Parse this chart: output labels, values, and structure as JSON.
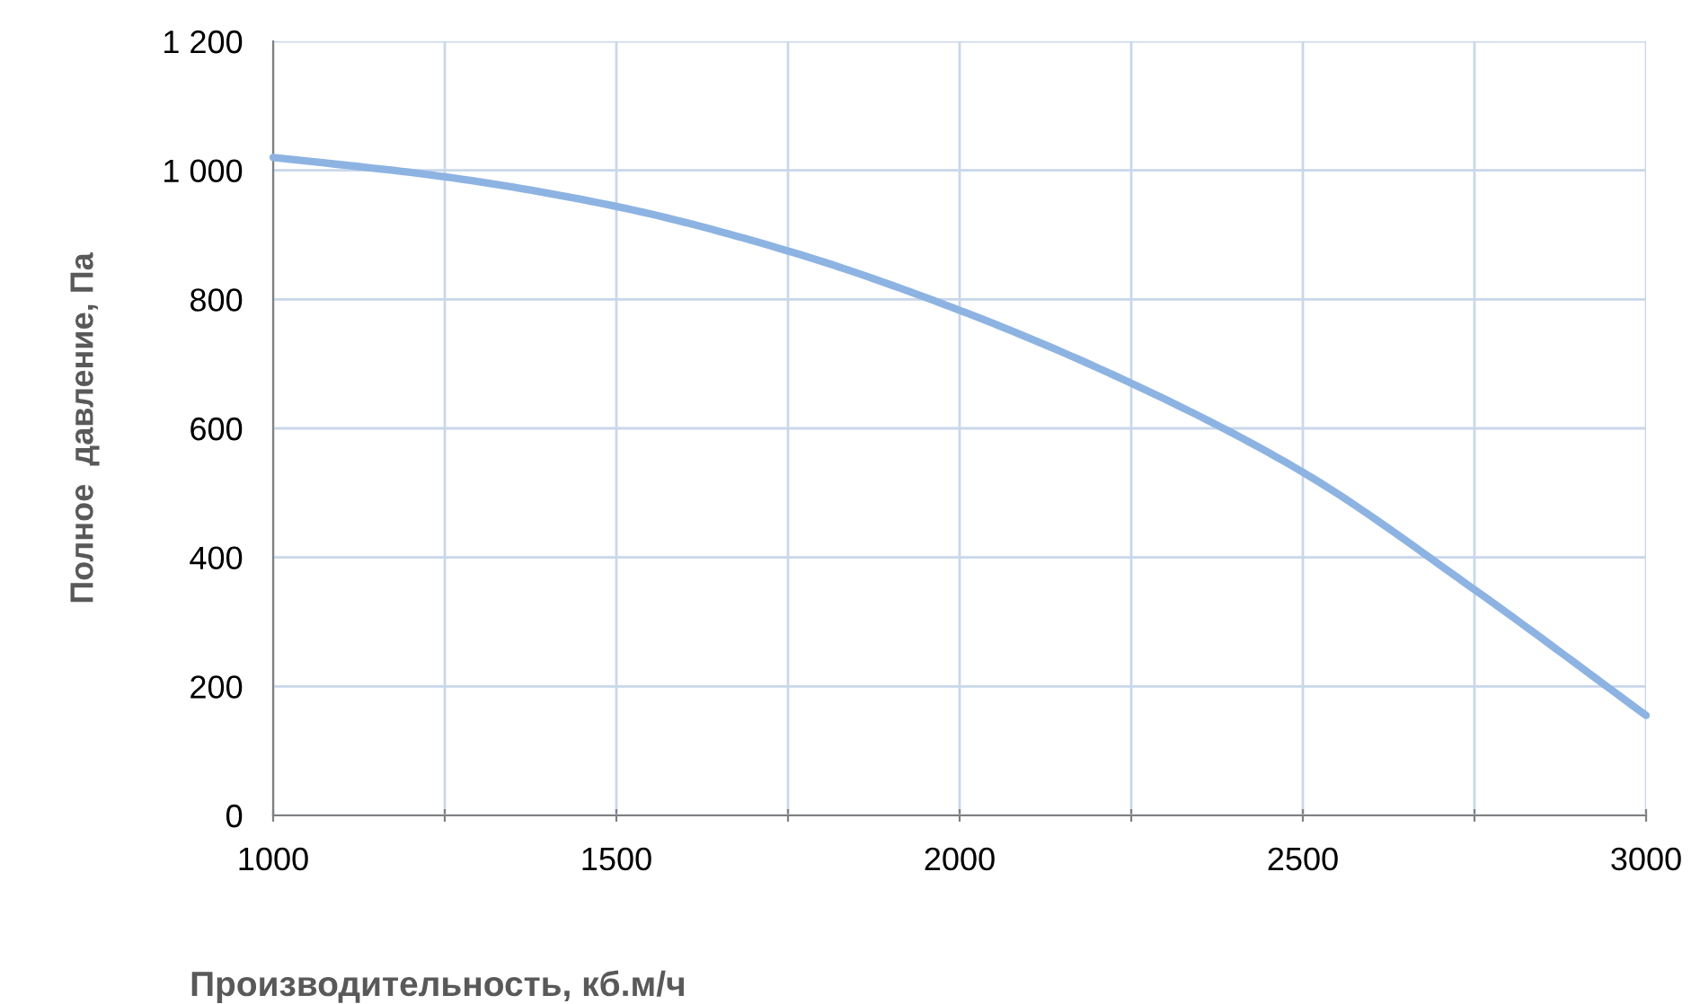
{
  "chart_data": {
    "type": "line",
    "xlabel": "Производительность, кб.м/ч",
    "ylabel": "Полное  давление, Па",
    "x": [
      1000,
      1250,
      1500,
      1750,
      2000,
      2250,
      2500,
      2750,
      3000
    ],
    "series": [
      {
        "color": "#8db3e2",
        "values": [
          1020,
          990,
          944,
          875,
          783,
          670,
          532,
          350,
          155
        ]
      }
    ],
    "xlim": [
      1000,
      3000
    ],
    "ylim": [
      0,
      1200
    ],
    "xticks": [
      1000,
      {
        "value": 1250,
        "label": null
      },
      1500,
      {
        "value": 1750,
        "label": null
      },
      2000,
      {
        "value": 2250,
        "label": null
      },
      2500,
      {
        "value": 2750,
        "label": null
      },
      3000
    ],
    "yticks": [
      0,
      200,
      400,
      600,
      800,
      {
        "value": 1000,
        "label": "1 000"
      },
      {
        "value": 1200,
        "label": "1 200"
      }
    ],
    "grid": true,
    "marker": "none",
    "line_style": "solid"
  }
}
